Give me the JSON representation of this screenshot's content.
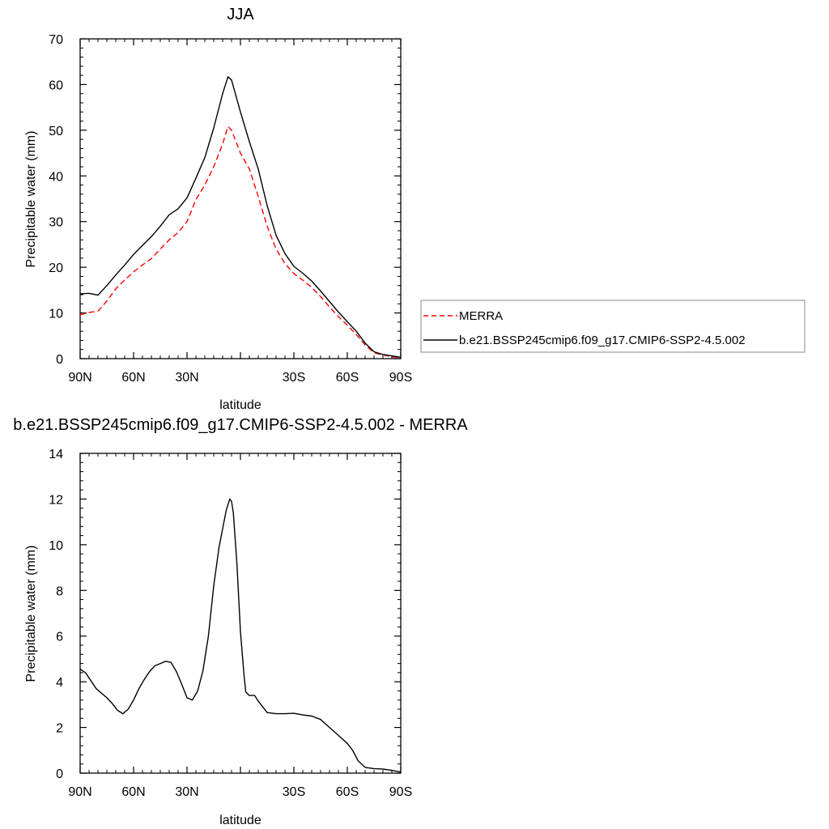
{
  "chart_data": [
    {
      "type": "line",
      "title": "JJA",
      "xlabel": "latitude",
      "ylabel": "Precipitable water (mm)",
      "xlim": [
        90,
        -90
      ],
      "ylim": [
        0,
        70
      ],
      "xticks": [
        {
          "value": 90,
          "label": "90N"
        },
        {
          "value": 60,
          "label": "60N"
        },
        {
          "value": 30,
          "label": "30N"
        },
        {
          "value": 0,
          "label": ""
        },
        {
          "value": -30,
          "label": "30S"
        },
        {
          "value": -60,
          "label": "60S"
        },
        {
          "value": -90,
          "label": "90S"
        }
      ],
      "yticks": [
        0,
        10,
        20,
        30,
        40,
        50,
        60,
        70
      ],
      "legend_position": "right",
      "series": [
        {
          "name": "MERRA",
          "color": "#ff0000",
          "dash": true,
          "x": [
            90,
            85,
            80,
            75,
            70,
            65,
            60,
            55,
            50,
            45,
            40,
            35,
            30,
            25,
            20,
            15,
            10,
            7,
            5,
            0,
            -5,
            -10,
            -15,
            -20,
            -25,
            -30,
            -35,
            -40,
            -45,
            -50,
            -55,
            -60,
            -65,
            -70,
            -75,
            -80,
            -85,
            -90
          ],
          "values": [
            9.6,
            10.1,
            10.4,
            12.6,
            15.3,
            17.2,
            19.0,
            20.5,
            21.9,
            24.0,
            26.0,
            27.6,
            30.0,
            34.8,
            38.0,
            42.0,
            47.0,
            50.8,
            50.0,
            45.0,
            41.5,
            35.5,
            29.0,
            24.0,
            20.8,
            18.6,
            17.2,
            15.6,
            13.6,
            11.3,
            9.2,
            7.3,
            5.3,
            3.0,
            1.3,
            0.8,
            0.4,
            0.2
          ]
        },
        {
          "name": "b.e21.BSSP245cmip6.f09_g17.CMIP6-SSP2-4.5.002",
          "color": "#000000",
          "dash": false,
          "x": [
            90,
            85,
            80,
            75,
            70,
            65,
            60,
            55,
            50,
            45,
            40,
            35,
            30,
            25,
            20,
            15,
            10,
            7,
            5,
            0,
            -5,
            -10,
            -15,
            -20,
            -25,
            -30,
            -35,
            -40,
            -45,
            -50,
            -55,
            -60,
            -65,
            -70,
            -75,
            -80,
            -85,
            -90
          ],
          "values": [
            14.2,
            14.3,
            13.9,
            16.0,
            18.3,
            20.5,
            22.8,
            24.8,
            26.7,
            29.0,
            31.5,
            32.8,
            35.2,
            39.5,
            44.0,
            50.5,
            58.0,
            61.7,
            61.0,
            54.0,
            47.5,
            41.5,
            33.5,
            27.0,
            23.0,
            20.2,
            18.7,
            17.0,
            14.8,
            12.5,
            10.2,
            8.1,
            6.0,
            3.4,
            1.5,
            0.9,
            0.6,
            0.3
          ]
        }
      ]
    },
    {
      "type": "line",
      "title": "b.e21.BSSP245cmip6.f09_g17.CMIP6-SSP2-4.5.002 - MERRA",
      "xlabel": "latitude",
      "ylabel": "Precipitable water (mm)",
      "xlim": [
        90,
        -90
      ],
      "ylim": [
        0,
        14
      ],
      "xticks": [
        {
          "value": 90,
          "label": "90N"
        },
        {
          "value": 60,
          "label": "60N"
        },
        {
          "value": 30,
          "label": "30N"
        },
        {
          "value": 0,
          "label": ""
        },
        {
          "value": -30,
          "label": "30S"
        },
        {
          "value": -60,
          "label": "60S"
        },
        {
          "value": -90,
          "label": "90S"
        }
      ],
      "yticks": [
        0,
        2,
        4,
        6,
        8,
        10,
        12,
        14
      ],
      "series": [
        {
          "color": "#000000",
          "dash": false,
          "x": [
            90,
            87,
            84,
            81,
            78,
            75,
            72,
            69,
            66,
            63,
            60,
            57,
            54,
            51,
            48,
            45,
            42,
            39,
            36,
            33,
            30,
            27,
            24,
            21,
            18,
            15,
            12,
            10,
            8,
            6,
            5,
            4,
            2,
            0,
            -2,
            -3,
            -5,
            -8,
            -10,
            -15,
            -20,
            -25,
            -30,
            -35,
            -40,
            -45,
            -50,
            -55,
            -60,
            -63,
            -66,
            -70,
            -75,
            -80,
            -85,
            -90
          ],
          "values": [
            4.55,
            4.4,
            4.05,
            3.7,
            3.5,
            3.3,
            3.05,
            2.75,
            2.6,
            2.8,
            3.2,
            3.7,
            4.1,
            4.45,
            4.7,
            4.8,
            4.9,
            4.85,
            4.45,
            3.9,
            3.3,
            3.2,
            3.6,
            4.5,
            6.0,
            8.2,
            9.9,
            10.7,
            11.5,
            12.0,
            11.9,
            11.4,
            9.2,
            6.2,
            4.3,
            3.55,
            3.4,
            3.4,
            3.15,
            2.65,
            2.6,
            2.6,
            2.62,
            2.55,
            2.5,
            2.35,
            2.0,
            1.65,
            1.3,
            1.0,
            0.55,
            0.25,
            0.2,
            0.18,
            0.12,
            0.05
          ]
        }
      ]
    }
  ]
}
